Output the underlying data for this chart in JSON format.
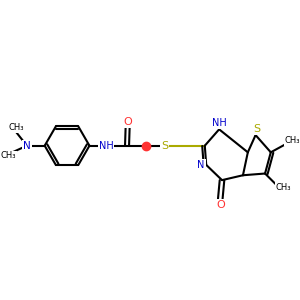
{
  "bg_color": "#ffffff",
  "N_color": "#0000cc",
  "O_color": "#ff3333",
  "S_color": "#aaaa00",
  "C_color": "#000000",
  "font_size": 7.0,
  "bond_width": 1.5,
  "fig_w": 3.0,
  "fig_h": 3.0,
  "dpi": 100,
  "xlim": [
    0,
    10
  ],
  "ylim": [
    0,
    10
  ]
}
